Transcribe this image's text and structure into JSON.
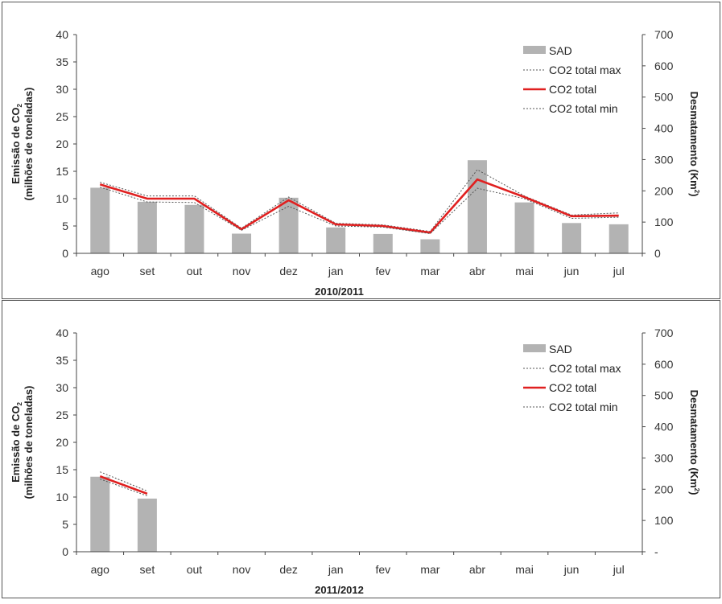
{
  "colors": {
    "bar": "#b3b3b3",
    "co2_total": "#e02020",
    "co2_bounds": "#555555",
    "axis": "#444444",
    "frame": "#555555"
  },
  "chart_data": [
    {
      "type": "bar",
      "xlabel": "2010/2011",
      "ylabel_line1": "Emissão de CO2",
      "ylabel_line2": "(milhões de toneladas)",
      "y2label": "Desmatamento (Km2)",
      "categories": [
        "ago",
        "set",
        "out",
        "nov",
        "dez",
        "jan",
        "fev",
        "mar",
        "abr",
        "mai",
        "jun",
        "jul"
      ],
      "ylim": [
        0,
        40
      ],
      "yticks": [
        "0",
        "5",
        "10",
        "15",
        "20",
        "25",
        "30",
        "35",
        "40"
      ],
      "y2lim": [
        0,
        700
      ],
      "y2ticks": [
        "0",
        "100",
        "200",
        "300",
        "400",
        "500",
        "600",
        "700"
      ],
      "legend_position": "top-right",
      "series": [
        {
          "name": "SAD",
          "kind": "bar",
          "axis": "right",
          "values": [
            210,
            165,
            155,
            63,
            178,
            83,
            62,
            45,
            298,
            163,
            97,
            93
          ]
        },
        {
          "name": "CO2 total max",
          "kind": "dotted-line",
          "axis": "left",
          "values": [
            13.0,
            10.5,
            10.5,
            4.6,
            10.3,
            5.5,
            5.2,
            4.0,
            15.3,
            10.5,
            7.0,
            7.4
          ]
        },
        {
          "name": "CO2 total",
          "kind": "line",
          "axis": "left",
          "values": [
            12.6,
            10.0,
            10.0,
            4.4,
            9.7,
            5.3,
            5.0,
            3.8,
            13.5,
            10.3,
            6.8,
            6.9
          ]
        },
        {
          "name": "CO2 total min",
          "kind": "dotted-line",
          "axis": "left",
          "values": [
            12.1,
            9.4,
            9.3,
            4.2,
            8.6,
            5.0,
            4.8,
            3.6,
            11.9,
            10.0,
            6.4,
            6.6
          ]
        }
      ]
    },
    {
      "type": "bar",
      "xlabel": "2011/2012",
      "ylabel_line1": "Emissão de CO2",
      "ylabel_line2": "(milhões de toneladas)",
      "y2label": "Desmatamento (Km2)",
      "categories": [
        "ago",
        "set",
        "out",
        "nov",
        "dez",
        "jan",
        "fev",
        "mar",
        "abr",
        "mai",
        "jun",
        "jul"
      ],
      "ylim": [
        0,
        40
      ],
      "yticks": [
        "0",
        "5",
        "10",
        "15",
        "20",
        "25",
        "30",
        "35",
        "40"
      ],
      "y2lim": [
        0,
        700
      ],
      "y2ticks": [
        "-",
        "100",
        "200",
        "300",
        "400",
        "500",
        "600",
        "700"
      ],
      "legend_position": "top-right",
      "series": [
        {
          "name": "SAD",
          "kind": "bar",
          "axis": "right",
          "values": [
            240,
            170,
            null,
            null,
            null,
            null,
            null,
            null,
            null,
            null,
            null,
            null
          ]
        },
        {
          "name": "CO2 total max",
          "kind": "dotted-line",
          "axis": "left",
          "values": [
            14.6,
            11.1,
            null,
            null,
            null,
            null,
            null,
            null,
            null,
            null,
            null,
            null
          ]
        },
        {
          "name": "CO2 total",
          "kind": "line",
          "axis": "left",
          "values": [
            13.8,
            10.6,
            null,
            null,
            null,
            null,
            null,
            null,
            null,
            null,
            null,
            null
          ]
        },
        {
          "name": "CO2 total min",
          "kind": "dotted-line",
          "axis": "left",
          "values": [
            13.3,
            10.2,
            null,
            null,
            null,
            null,
            null,
            null,
            null,
            null,
            null,
            null
          ]
        }
      ]
    }
  ]
}
